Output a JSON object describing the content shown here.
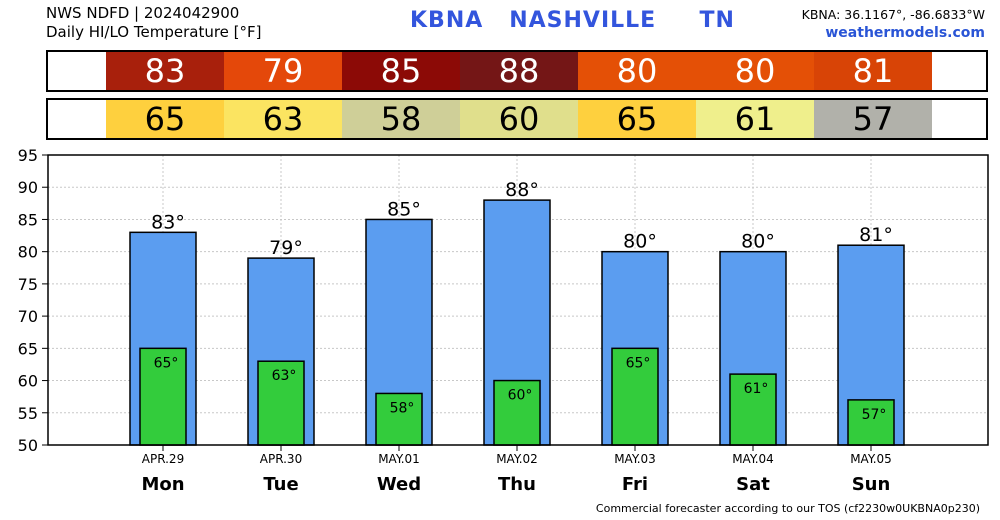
{
  "header": {
    "line1": "NWS NDFD | 2024042900",
    "line2": "Daily HI/LO Temperature [°F]",
    "station": "KBNA   NASHVILLE     TN",
    "coords": "KBNA: 36.1167°, -86.6833°W",
    "site": "weathermodels.com"
  },
  "hi_row": [
    {
      "value": "83",
      "color": "#a8200c"
    },
    {
      "value": "79",
      "color": "#e4480a"
    },
    {
      "value": "85",
      "color": "#8c0a06"
    },
    {
      "value": "88",
      "color": "#741616"
    },
    {
      "value": "80",
      "color": "#e45006"
    },
    {
      "value": "80",
      "color": "#e45006"
    },
    {
      "value": "81",
      "color": "#d84406"
    }
  ],
  "lo_row": [
    {
      "value": "65",
      "color": "#fed03e"
    },
    {
      "value": "63",
      "color": "#fbe461"
    },
    {
      "value": "58",
      "color": "#cfcf98"
    },
    {
      "value": "60",
      "color": "#e0df8c"
    },
    {
      "value": "65",
      "color": "#fed03e"
    },
    {
      "value": "61",
      "color": "#efef8c"
    },
    {
      "value": "57",
      "color": "#b1b1aa"
    }
  ],
  "chart_data": {
    "type": "bar",
    "categories": [
      "APR.29",
      "APR.30",
      "MAY.01",
      "MAY.02",
      "MAY.03",
      "MAY.04",
      "MAY.05"
    ],
    "days": [
      "Mon",
      "Tue",
      "Wed",
      "Thu",
      "Fri",
      "Sat",
      "Sun"
    ],
    "series": [
      {
        "values": [
          83,
          79,
          85,
          88,
          80,
          80,
          81
        ],
        "labels": [
          "83°",
          "79°",
          "85°",
          "88°",
          "80°",
          "80°",
          "81°"
        ],
        "color": "#5b9df0"
      },
      {
        "values": [
          65,
          63,
          58,
          60,
          65,
          61,
          57
        ],
        "labels": [
          "65°",
          "63°",
          "58°",
          "60°",
          "65°",
          "61°",
          "57°"
        ],
        "color": "#33cc3c"
      }
    ],
    "yticks": [
      50,
      55,
      60,
      65,
      70,
      75,
      80,
      85,
      90,
      95
    ],
    "ylim": [
      50,
      95
    ],
    "grid": true
  },
  "footer": "Commercial forecaster according to our TOS (cf2230w0UKBNA0p230)"
}
